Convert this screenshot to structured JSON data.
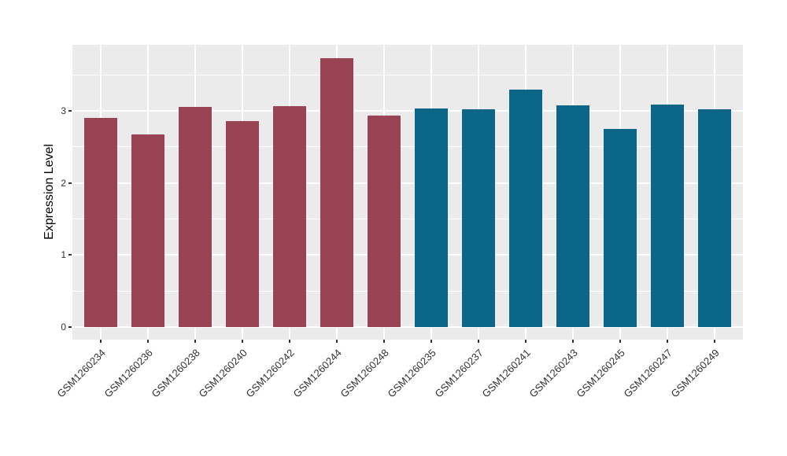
{
  "chart_data": {
    "type": "bar",
    "title": "",
    "xlabel": "",
    "ylabel": "Expression Level",
    "categories": [
      "GSM1260234",
      "GSM1260236",
      "GSM1260238",
      "GSM1260240",
      "GSM1260242",
      "GSM1260244",
      "GSM1260248",
      "GSM1260235",
      "GSM1260237",
      "GSM1260241",
      "GSM1260243",
      "GSM1260245",
      "GSM1260247",
      "GSM1260249"
    ],
    "values": [
      2.9,
      2.67,
      3.05,
      2.86,
      3.07,
      3.73,
      2.93,
      3.03,
      3.02,
      3.3,
      3.08,
      2.75,
      3.09,
      3.02
    ],
    "groups": [
      "group1",
      "group1",
      "group1",
      "group1",
      "group1",
      "group1",
      "group1",
      "group2",
      "group2",
      "group2",
      "group2",
      "group2",
      "group2",
      "group2"
    ],
    "group_colors": {
      "group1": "#9A4354",
      "group2": "#0B6687"
    },
    "ylim": [
      0,
      3.92
    ],
    "yticks": [
      0,
      1,
      2,
      3
    ],
    "ytick_labels": [
      "0",
      "1",
      "2",
      "3"
    ],
    "minor_yticks": [
      0.5,
      1.5,
      2.5,
      3.5
    ],
    "bar_width_ratio": 0.7,
    "x_label_angle_deg": 45,
    "grid": "on",
    "legend_position": "none",
    "panel_background": "#EBEBEB",
    "grid_color": "#FFFFFF",
    "tick_color": "#333333",
    "axis_text_color": "#333333",
    "axis_title_color": "#000000"
  }
}
